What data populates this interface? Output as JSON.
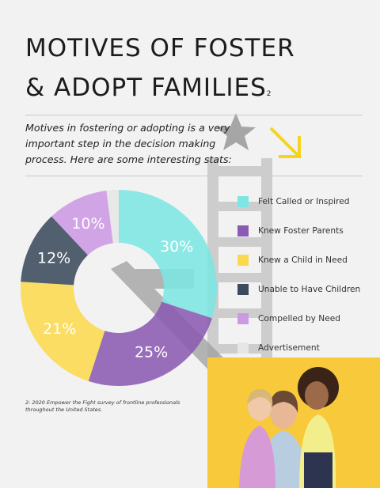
{
  "title_line1": "MOTIVES OF FOSTER",
  "title_line2": "& ADOPT FAMILIES",
  "title_sup": "2",
  "intro": "Motives in fostering or adopting is a very important step in the decision making process. Here are some interesting stats:",
  "footnote": "2: 2020 Empower the Fight survey of frontline professionals throughout the United States.",
  "colors": {
    "teal": "#7de6e2",
    "purple": "#8b5bb3",
    "yellow": "#fad94d",
    "slate": "#3b4a5c",
    "lilac": "#cc99e4",
    "ad": "#e6e6e6",
    "accent": "#f5d41f"
  },
  "chart_data": {
    "type": "pie",
    "donut": true,
    "slices": [
      {
        "label": "Felt Called or Inspired",
        "value": 30,
        "display": "30%",
        "color": "#7de6e2"
      },
      {
        "label": "Knew Foster Parents",
        "value": 25,
        "display": "25%",
        "color": "#8b5bb3"
      },
      {
        "label": "Knew a Child in Need",
        "value": 21,
        "display": "21%",
        "color": "#fad94d"
      },
      {
        "label": "Unable to Have Children",
        "value": 12,
        "display": "12%",
        "color": "#3b4a5c"
      },
      {
        "label": "Compelled by Need",
        "value": 10,
        "display": "10%",
        "color": "#cc99e4"
      },
      {
        "label": "Advertisement",
        "value": 2,
        "display": "",
        "color": "#e6e6e6"
      }
    ],
    "legend_position": "right"
  },
  "legend": [
    {
      "label": "Felt Called or Inspired",
      "color": "#7de6e2"
    },
    {
      "label": "Knew Foster Parents",
      "color": "#8b5bb3"
    },
    {
      "label": "Knew a Child in Need",
      "color": "#fad94d"
    },
    {
      "label": "Unable to Have Children",
      "color": "#3b4a5c"
    },
    {
      "label": "Compelled by Need",
      "color": "#cc99e4"
    },
    {
      "label": "Advertisement",
      "color": "#e6e6e6"
    }
  ],
  "photo": {
    "background": "#f8c93a"
  }
}
